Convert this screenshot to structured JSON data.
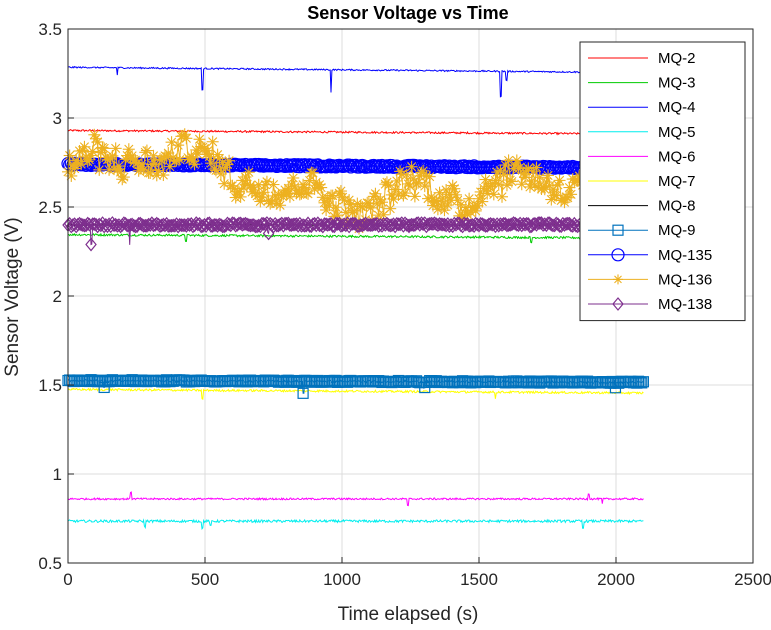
{
  "chart_data": {
    "type": "line",
    "title": "Sensor Voltage vs Time",
    "xlabel": "Time elapsed (s)",
    "ylabel": "Sensor Voltage (V)",
    "xlim": [
      0,
      2500
    ],
    "ylim": [
      0.5,
      3.5
    ],
    "xticks": [
      "0",
      "500",
      "1000",
      "1500",
      "2000",
      "2500"
    ],
    "yticks": [
      "0.5",
      "1",
      "1.5",
      "2",
      "2.5",
      "3",
      "3.5"
    ],
    "grid": true,
    "legend_position": "top-right",
    "x_range": [
      0,
      2100
    ],
    "series": [
      {
        "name": "MQ-2",
        "color": "#ff0000",
        "marker": "none",
        "base": 2.93,
        "noise": 0.005,
        "drift": -0.02,
        "spikes": []
      },
      {
        "name": "MQ-3",
        "color": "#00cc00",
        "marker": "none",
        "base": 2.345,
        "noise": 0.006,
        "drift": -0.02,
        "spikes": [
          [
            430,
            -0.03
          ],
          [
            1690,
            -0.03
          ]
        ]
      },
      {
        "name": "MQ-4",
        "color": "#0000ff",
        "marker": "none",
        "base": 3.285,
        "noise": 0.004,
        "drift": -0.03,
        "spikes": [
          [
            180,
            -0.04
          ],
          [
            490,
            -0.12
          ],
          [
            960,
            -0.13
          ],
          [
            1580,
            -0.14
          ],
          [
            1600,
            -0.05
          ]
        ]
      },
      {
        "name": "MQ-5",
        "color": "#00eeee",
        "marker": "none",
        "base": 0.735,
        "noise": 0.007,
        "drift": 0.0,
        "spikes": [
          [
            280,
            -0.03
          ],
          [
            490,
            -0.04
          ],
          [
            520,
            -0.03
          ],
          [
            1880,
            -0.04
          ]
        ]
      },
      {
        "name": "MQ-6",
        "color": "#ff00ff",
        "marker": "none",
        "base": 0.86,
        "noise": 0.005,
        "drift": 0.0,
        "spikes": [
          [
            230,
            0.04
          ],
          [
            1240,
            -0.04
          ],
          [
            1900,
            0.03
          ],
          [
            1950,
            -0.03
          ]
        ]
      },
      {
        "name": "MQ-7",
        "color": "#ffff00",
        "marker": "none",
        "base": 1.475,
        "noise": 0.006,
        "drift": -0.02,
        "spikes": [
          [
            490,
            -0.05
          ],
          [
            1560,
            -0.04
          ]
        ]
      },
      {
        "name": "MQ-8",
        "color": "#000000",
        "marker": "none",
        "base": 2.4,
        "noise": 0.004,
        "drift": 0.0,
        "spikes": []
      },
      {
        "name": "MQ-9",
        "color": "#0072bd",
        "marker": "square",
        "base": 1.525,
        "noise": 0.006,
        "drift": -0.01,
        "spikes": [
          [
            860,
            -0.07
          ],
          [
            130,
            -0.04
          ],
          [
            1300,
            -0.03
          ],
          [
            2000,
            -0.03
          ]
        ]
      },
      {
        "name": "MQ-135",
        "color": "#0000ff",
        "marker": "circle",
        "base": 2.74,
        "noise": 0.006,
        "drift": -0.02,
        "spikes": []
      },
      {
        "name": "MQ-136",
        "color": "#edb120",
        "marker": "star",
        "base": 2.7,
        "noise": 0.08,
        "drift": -0.12,
        "spikes": []
      },
      {
        "name": "MQ-138",
        "color": "#7e2f8e",
        "marker": "diamond",
        "base": 2.4,
        "noise": 0.01,
        "drift": 0.0,
        "spikes": [
          [
            85,
            -0.11
          ],
          [
            225,
            -0.12
          ],
          [
            730,
            -0.05
          ],
          [
            1245,
            -0.05
          ]
        ]
      }
    ]
  }
}
